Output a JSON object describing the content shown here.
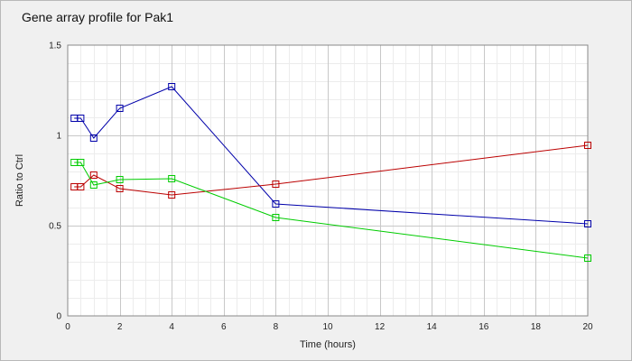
{
  "chart_data": {
    "type": "line",
    "title": "Gene array profile for Pak1",
    "xlabel": "Time (hours)",
    "ylabel": "Ratio to Ctrl",
    "xlim": [
      0,
      20
    ],
    "ylim": [
      0,
      1.5
    ],
    "x_ticks": [
      "0",
      "2",
      "4",
      "6",
      "8",
      "10",
      "12",
      "14",
      "16",
      "18",
      "20"
    ],
    "y_ticks": [
      "0",
      "0.5",
      "1",
      "1.5"
    ],
    "grid": true,
    "legend": "none",
    "x": [
      0.25,
      0.5,
      1,
      2,
      4,
      8,
      20
    ],
    "series": [
      {
        "color": "#0000aa",
        "values": [
          1.095,
          1.095,
          0.985,
          1.15,
          1.27,
          0.62,
          0.51
        ]
      },
      {
        "color": "#bb0000",
        "values": [
          0.715,
          0.715,
          0.78,
          0.705,
          0.67,
          0.73,
          0.945
        ]
      },
      {
        "color": "#00cc00",
        "values": [
          0.85,
          0.85,
          0.725,
          0.755,
          0.76,
          0.545,
          0.32
        ]
      }
    ]
  }
}
